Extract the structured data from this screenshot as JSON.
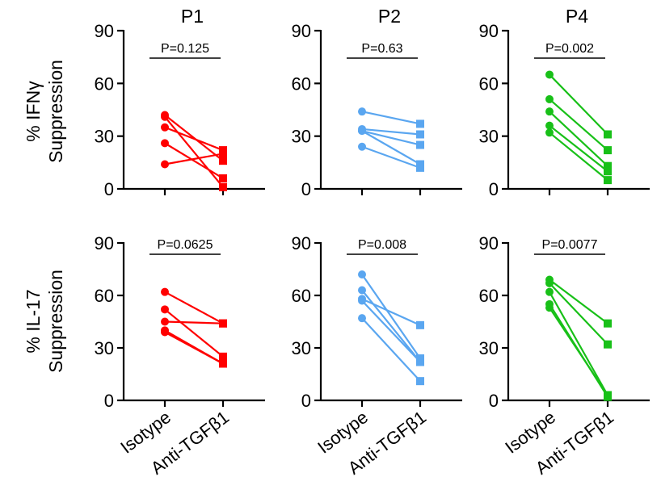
{
  "figure": {
    "row_labels": [
      {
        "line1": "% IFNγ",
        "line2": "Suppression"
      },
      {
        "line1": "% IL-17",
        "line2": "Suppression"
      }
    ]
  },
  "chart_data": [
    {
      "type": "line",
      "row": 0,
      "col": 0,
      "title": "P1",
      "color": "#ff0000",
      "categories": [
        "Isotype",
        "Anti-TGFβ1"
      ],
      "ylim": [
        0,
        90
      ],
      "yticks": [
        0,
        30,
        60,
        90
      ],
      "annotation": "P=0.125",
      "pairs": [
        [
          42,
          16
        ],
        [
          35,
          22
        ],
        [
          26,
          6
        ],
        [
          14,
          20
        ],
        [
          41,
          1
        ]
      ]
    },
    {
      "type": "line",
      "row": 0,
      "col": 1,
      "title": "P2",
      "color": "#5aa6f0",
      "categories": [
        "Isotype",
        "Anti-TGFβ1"
      ],
      "ylim": [
        0,
        90
      ],
      "yticks": [
        0,
        30,
        60,
        90
      ],
      "annotation": "P=0.63",
      "pairs": [
        [
          44,
          37
        ],
        [
          34,
          31
        ],
        [
          33,
          25
        ],
        [
          33,
          14
        ],
        [
          24,
          12
        ]
      ]
    },
    {
      "type": "line",
      "row": 0,
      "col": 2,
      "title": "P4",
      "color": "#18c018",
      "categories": [
        "Isotype",
        "Anti-TGFβ1"
      ],
      "ylim": [
        0,
        90
      ],
      "yticks": [
        0,
        30,
        60,
        90
      ],
      "annotation": "P=0.002",
      "pairs": [
        [
          65,
          31
        ],
        [
          51,
          22
        ],
        [
          44,
          13
        ],
        [
          36,
          10
        ],
        [
          32,
          5
        ]
      ]
    },
    {
      "type": "line",
      "row": 1,
      "col": 0,
      "title": "",
      "color": "#ff0000",
      "categories": [
        "Isotype",
        "Anti-TGFβ1"
      ],
      "ylim": [
        0,
        90
      ],
      "yticks": [
        0,
        30,
        60,
        90
      ],
      "annotation": "P=0.0625",
      "pairs": [
        [
          62,
          44
        ],
        [
          52,
          25
        ],
        [
          45,
          44
        ],
        [
          40,
          21
        ],
        [
          39,
          21
        ]
      ]
    },
    {
      "type": "line",
      "row": 1,
      "col": 1,
      "title": "",
      "color": "#5aa6f0",
      "categories": [
        "Isotype",
        "Anti-TGFβ1"
      ],
      "ylim": [
        0,
        90
      ],
      "yticks": [
        0,
        30,
        60,
        90
      ],
      "annotation": "P=0.008",
      "pairs": [
        [
          72,
          24
        ],
        [
          63,
          22
        ],
        [
          58,
          43
        ],
        [
          57,
          22
        ],
        [
          47,
          11
        ]
      ]
    },
    {
      "type": "line",
      "row": 1,
      "col": 2,
      "title": "",
      "color": "#18c018",
      "categories": [
        "Isotype",
        "Anti-TGFβ1"
      ],
      "ylim": [
        0,
        90
      ],
      "yticks": [
        0,
        30,
        60,
        90
      ],
      "annotation": "P=0.0077",
      "pairs": [
        [
          69,
          44
        ],
        [
          67,
          32
        ],
        [
          62,
          3
        ],
        [
          55,
          2
        ],
        [
          53,
          3
        ]
      ]
    }
  ]
}
